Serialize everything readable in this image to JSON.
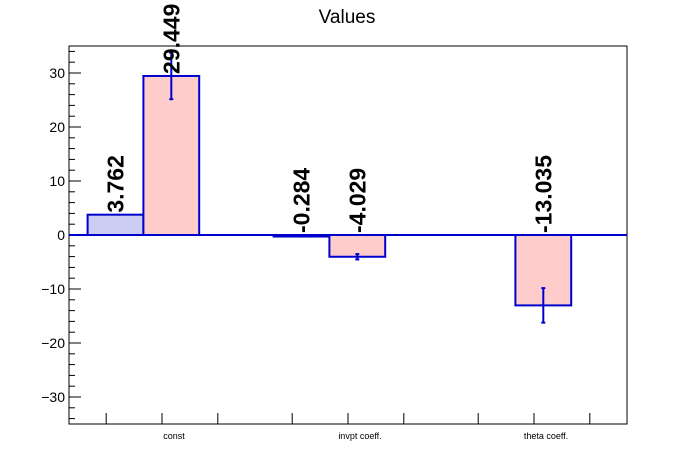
{
  "chart_data": {
    "type": "bar",
    "title": "Values",
    "xlabel": "",
    "ylabel": "",
    "categories": [
      "const",
      "invpt coeff.",
      "theta coeff."
    ],
    "ylim": [
      -35,
      35
    ],
    "yticks": [
      -30,
      -20,
      -10,
      0,
      10,
      20,
      30
    ],
    "ytick_labels": [
      "−30",
      "−20",
      "−10",
      "0",
      "10",
      "20",
      "30"
    ],
    "grid": false,
    "legend": "none",
    "series": [
      {
        "values": [
          3.762,
          -0.284,
          null
        ],
        "labels": [
          "3.762",
          "-0.284",
          ""
        ],
        "errors": [
          null,
          null,
          null
        ],
        "fill": "#ccccf5",
        "stroke": "#0000cc"
      },
      {
        "values": [
          29.449,
          -4.029,
          -13.035
        ],
        "labels": [
          "29.449",
          "-4.029",
          "-13.035"
        ],
        "errors": [
          4.3,
          0.5,
          3.2
        ],
        "fill": "#ffcccc",
        "stroke": "#0000cc"
      }
    ],
    "colors": {
      "bar_stroke": "#0000cc",
      "zero_line": "#0000cc",
      "axis": "#000000"
    }
  }
}
